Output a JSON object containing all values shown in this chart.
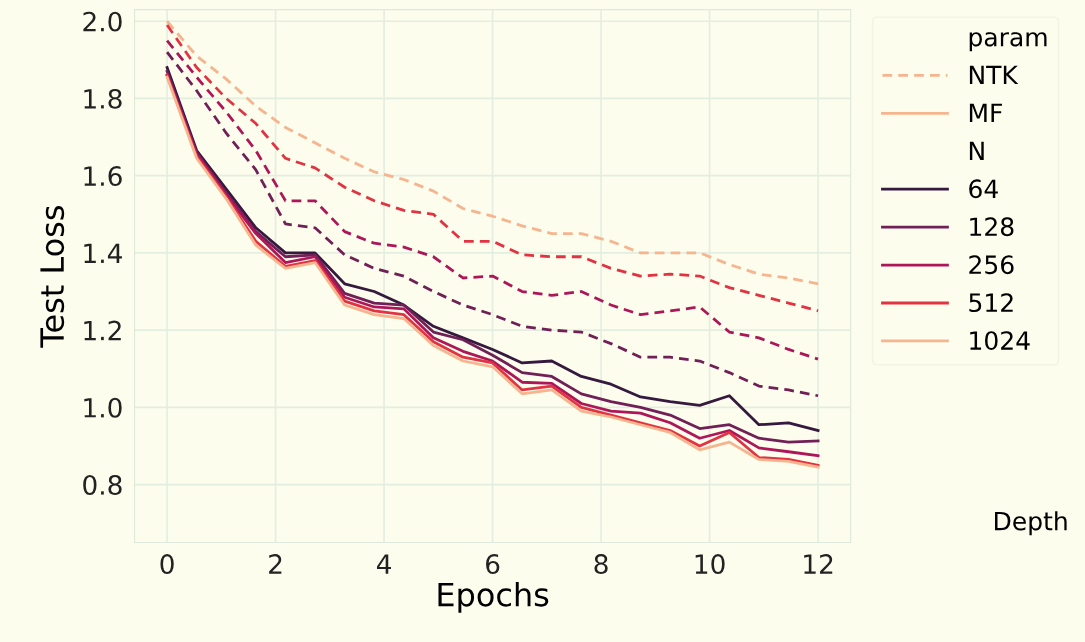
{
  "chart_data": {
    "type": "line",
    "xlabel": "Epochs",
    "ylabel": "Test Loss",
    "legend_title": "param",
    "annotations": [
      "NTK",
      "MF",
      "N",
      "Depth"
    ],
    "x": [
      0,
      0.545,
      1.091,
      1.636,
      2.182,
      2.727,
      3.273,
      3.818,
      4.364,
      4.909,
      5.455,
      6,
      6.545,
      7.091,
      7.636,
      8.182,
      8.727,
      9.273,
      9.818,
      10.364,
      10.909,
      11.455,
      12
    ],
    "xlim": [
      -0.6,
      12.6
    ],
    "xticks": [
      0,
      2,
      4,
      6,
      8,
      10,
      12
    ],
    "ylim": [
      0.65,
      2.03
    ],
    "yticks": [
      0.8,
      {
        "value": 1,
        "label": "1.0"
      },
      1.2,
      1.4,
      1.6,
      1.8,
      {
        "value": 2,
        "label": "2.0"
      }
    ],
    "grid": true,
    "legend": "right",
    "marker": "none",
    "series": [
      {
        "color": "#f6b48f",
        "line_style": "dashed",
        "values": [
          2.0,
          1.91,
          1.85,
          1.78,
          1.725,
          1.685,
          1.645,
          1.61,
          1.59,
          1.56,
          1.515,
          1.495,
          1.47,
          1.45,
          1.45,
          1.43,
          1.4,
          1.4,
          1.4,
          1.37,
          1.345,
          1.335,
          1.32
        ]
      },
      {
        "color": "#e13342",
        "line_style": "dashed",
        "values": [
          1.99,
          1.88,
          1.8,
          1.735,
          1.645,
          1.62,
          1.57,
          1.535,
          1.51,
          1.5,
          1.43,
          1.43,
          1.395,
          1.39,
          1.39,
          1.36,
          1.34,
          1.345,
          1.34,
          1.31,
          1.29,
          1.27,
          1.25
        ]
      },
      {
        "color": "#ad1759",
        "line_style": "dashed",
        "values": [
          1.95,
          1.855,
          1.765,
          1.665,
          1.535,
          1.535,
          1.455,
          1.425,
          1.415,
          1.39,
          1.335,
          1.34,
          1.3,
          1.29,
          1.3,
          1.265,
          1.24,
          1.25,
          1.26,
          1.195,
          1.18,
          1.15,
          1.125
        ]
      },
      {
        "color": "#701f57",
        "line_style": "dashed",
        "values": [
          1.92,
          1.82,
          1.71,
          1.615,
          1.475,
          1.465,
          1.395,
          1.36,
          1.34,
          1.3,
          1.265,
          1.24,
          1.21,
          1.2,
          1.195,
          1.165,
          1.13,
          1.13,
          1.12,
          1.09,
          1.055,
          1.045,
          1.03
        ]
      },
      {
        "name": "64",
        "color": "#35193e",
        "line_style": "solid",
        "values": [
          1.88,
          1.665,
          1.565,
          1.465,
          1.4,
          1.4,
          1.32,
          1.3,
          1.265,
          1.21,
          1.18,
          1.15,
          1.115,
          1.12,
          1.08,
          1.06,
          1.027,
          1.015,
          1.005,
          1.03,
          0.955,
          0.96,
          0.94
        ]
      },
      {
        "name": "128",
        "color": "#701f57",
        "line_style": "solid",
        "values": [
          1.87,
          1.66,
          1.555,
          1.455,
          1.39,
          1.395,
          1.295,
          1.27,
          1.265,
          1.195,
          1.175,
          1.135,
          1.09,
          1.08,
          1.035,
          1.015,
          1.0,
          0.98,
          0.945,
          0.955,
          0.92,
          0.91,
          0.913
        ]
      },
      {
        "name": "256",
        "color": "#ad1759",
        "line_style": "solid",
        "values": [
          1.86,
          1.655,
          1.55,
          1.45,
          1.375,
          1.39,
          1.285,
          1.26,
          1.255,
          1.18,
          1.145,
          1.12,
          1.065,
          1.062,
          1.01,
          0.99,
          0.985,
          0.96,
          0.92,
          0.94,
          0.895,
          0.885,
          0.875
        ]
      },
      {
        "name": "512",
        "color": "#e13342",
        "line_style": "solid",
        "values": [
          1.86,
          1.65,
          1.545,
          1.43,
          1.365,
          1.38,
          1.275,
          1.25,
          1.24,
          1.17,
          1.13,
          1.115,
          1.045,
          1.055,
          1.0,
          0.98,
          0.96,
          0.94,
          0.9,
          0.935,
          0.87,
          0.865,
          0.85
        ]
      },
      {
        "name": "1024",
        "color": "#f6b48f",
        "line_style": "solid",
        "values": [
          1.855,
          1.645,
          1.54,
          1.42,
          1.36,
          1.375,
          1.265,
          1.24,
          1.23,
          1.16,
          1.12,
          1.105,
          1.035,
          1.045,
          0.99,
          0.975,
          0.955,
          0.935,
          0.89,
          0.91,
          0.865,
          0.86,
          0.845
        ]
      }
    ]
  }
}
